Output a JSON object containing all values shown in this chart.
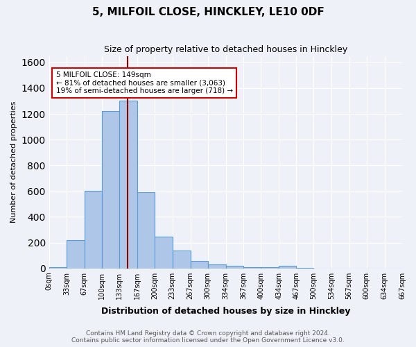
{
  "title": "5, MILFOIL CLOSE, HINCKLEY, LE10 0DF",
  "subtitle": "Size of property relative to detached houses in Hinckley",
  "xlabel": "Distribution of detached houses by size in Hinckley",
  "ylabel": "Number of detached properties",
  "bin_labels": [
    "0sqm",
    "33sqm",
    "67sqm",
    "100sqm",
    "133sqm",
    "167sqm",
    "200sqm",
    "233sqm",
    "267sqm",
    "300sqm",
    "334sqm",
    "367sqm",
    "400sqm",
    "434sqm",
    "467sqm",
    "500sqm",
    "534sqm",
    "567sqm",
    "600sqm",
    "634sqm",
    "667sqm"
  ],
  "bin_edges": [
    0,
    33,
    67,
    100,
    133,
    167,
    200,
    233,
    267,
    300,
    334,
    367,
    400,
    434,
    467,
    500,
    534,
    567,
    600,
    634,
    667
  ],
  "bar_heights": [
    10,
    220,
    600,
    1220,
    1300,
    590,
    245,
    140,
    55,
    30,
    20,
    10,
    10,
    20,
    5,
    0,
    0,
    0,
    0,
    0
  ],
  "bar_color": "#aec6e8",
  "bar_edge_color": "#5b9bd5",
  "property_size": 149,
  "red_line_color": "#8b0000",
  "annotation_text": "5 MILFOIL CLOSE: 149sqm\n← 81% of detached houses are smaller (3,063)\n19% of semi-detached houses are larger (718) →",
  "annotation_box_color": "#ffffff",
  "annotation_box_edge": "#cc0000",
  "ylim": [
    0,
    1650
  ],
  "yticks": [
    0,
    200,
    400,
    600,
    800,
    1000,
    1200,
    1400,
    1600
  ],
  "footer_line1": "Contains HM Land Registry data © Crown copyright and database right 2024.",
  "footer_line2": "Contains public sector information licensed under the Open Government Licence v3.0.",
  "bg_color": "#eef2f8",
  "plot_bg_color": "#eef2f8"
}
